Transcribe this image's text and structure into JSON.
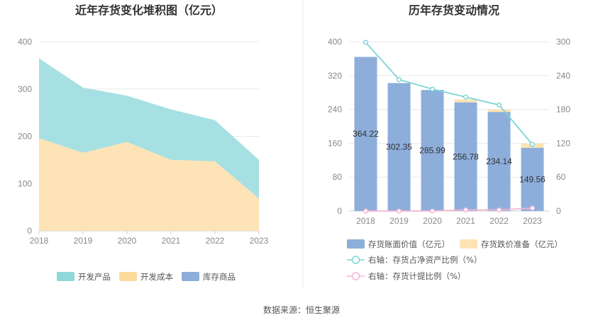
{
  "source": "数据来源：恒生聚源",
  "colors": {
    "dev_product": "#a7e0e2",
    "dev_product_legend": "#8fd8da",
    "dev_cost": "#fde3b5",
    "dev_cost_legend": "#fbd99b",
    "stock_goods": "#8daedb",
    "bar_blue": "#8daedb",
    "bar_yellow": "#fde3b5",
    "line_cyan": "#7fd3d8",
    "line_pink": "#f3b5d3",
    "grid": "#e8e8e8",
    "divider": "#eeeeee"
  },
  "chart_data": [
    {
      "type": "area",
      "title": "近年存货变化堆积图（亿元）",
      "x": [
        "2018",
        "2019",
        "2020",
        "2021",
        "2022",
        "2023"
      ],
      "ylim": [
        0,
        400
      ],
      "yticks": [
        "0",
        "100",
        "200",
        "300",
        "400"
      ],
      "stacked": true,
      "series": [
        {
          "name": "开发成本",
          "values": [
            196,
            165,
            188,
            150,
            147,
            68
          ]
        },
        {
          "name": "开发产品",
          "values": [
            169,
            138,
            98,
            107,
            87,
            82
          ]
        },
        {
          "name": "库存商品",
          "values": [
            0,
            0,
            0,
            0,
            0,
            0
          ]
        }
      ],
      "legend": [
        "开发产品",
        "开发成本",
        "库存商品"
      ],
      "legend_position": "bottom"
    },
    {
      "type": "bar",
      "title": "历年存货变动情况",
      "categories": [
        "2018",
        "2019",
        "2020",
        "2021",
        "2022",
        "2023"
      ],
      "ylim_left": [
        0,
        400
      ],
      "yticks_left": [
        "0",
        "80",
        "160",
        "240",
        "320",
        "400"
      ],
      "ylim_right": [
        0,
        300
      ],
      "yticks_right": [
        "0",
        "60",
        "120",
        "180",
        "240",
        "300"
      ],
      "series": [
        {
          "name": "存货账面价值（亿元）",
          "kind": "bar",
          "axis": "left",
          "values": [
            364.22,
            302.35,
            285.99,
            256.78,
            234.14,
            149.56
          ],
          "labels": [
            "364.22",
            "302.35",
            "285.99",
            "256.78",
            "234.14",
            "149.56"
          ]
        },
        {
          "name": "存货跌价准备（亿元）",
          "kind": "bar-stack",
          "axis": "left",
          "values": [
            0,
            0,
            0,
            7,
            6,
            10
          ]
        },
        {
          "name": "右轴：存货占净资产比例（%）",
          "kind": "line",
          "axis": "right",
          "values": [
            299,
            233,
            216,
            202,
            188,
            118
          ]
        },
        {
          "name": "右轴：存货计提比例（%）",
          "kind": "line",
          "axis": "right",
          "values": [
            0,
            0,
            0,
            2,
            2,
            5
          ]
        }
      ],
      "legend_position": "bottom"
    }
  ]
}
